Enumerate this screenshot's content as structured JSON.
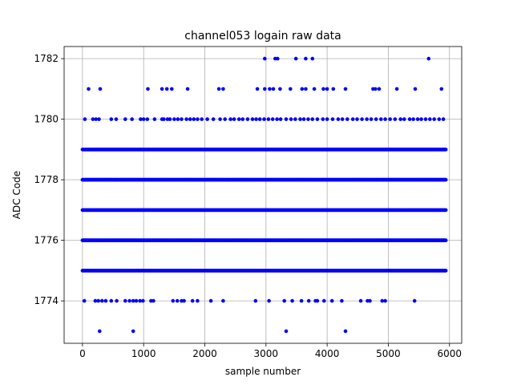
{
  "chart_data": {
    "type": "scatter",
    "title": "channel053 logain raw data",
    "xlabel": "sample number",
    "ylabel": "ADC Code",
    "xlim": [
      -300,
      6200
    ],
    "ylim": [
      1772.6,
      1782.4
    ],
    "xticks": [
      0,
      1000,
      2000,
      3000,
      4000,
      5000,
      6000
    ],
    "yticks": [
      1774,
      1776,
      1778,
      1780,
      1782
    ],
    "grid": true,
    "marker_color": "#0000ff",
    "n_samples": 5950,
    "series": [
      {
        "levels": [
          {
            "y": 1782,
            "x": [
              2980,
              3150,
              3190,
              3490,
              3650,
              3760,
              5660
            ]
          },
          {
            "y": 1781,
            "x": [
              100,
              290,
              1070,
              1300,
              1380,
              1460,
              1720,
              2230,
              2300,
              2860,
              2980,
              3060,
              3120,
              3230,
              3400,
              3590,
              3650,
              3790,
              3940,
              4000,
              4100,
              4300,
              4750,
              4790,
              4850,
              5140,
              5440,
              5870
            ]
          },
          {
            "y": 1780,
            "x": [
              40,
              170,
              220,
              270,
              470,
              550,
              700,
              810,
              950,
              1000,
              1060,
              1180,
              1300,
              1330,
              1390,
              1430,
              1500,
              1560,
              1620,
              1700,
              1760,
              1820,
              1880,
              1950,
              2040,
              2140,
              2250,
              2330,
              2420,
              2480,
              2560,
              2620,
              2700,
              2780,
              2840,
              2900,
              2970,
              3040,
              3110,
              3180,
              3240,
              3330,
              3410,
              3480,
              3560,
              3620,
              3690,
              3760,
              3840,
              3930,
              4000,
              4090,
              4180,
              4250,
              4330,
              4420,
              4490,
              4570,
              4650,
              4720,
              4800,
              4880,
              4950,
              5030,
              5110,
              5200,
              5260,
              5350,
              5410,
              5480,
              5540,
              5610,
              5680,
              5750,
              5830,
              5900
            ]
          },
          {
            "y": 1779,
            "x_range": [
              0,
              5950
            ],
            "dense": true
          },
          {
            "y": 1778,
            "x_range": [
              0,
              5950
            ],
            "dense": true
          },
          {
            "y": 1777,
            "x_range": [
              0,
              5950
            ],
            "dense": true
          },
          {
            "y": 1776,
            "x_range": [
              0,
              5950
            ],
            "dense": true
          },
          {
            "y": 1775,
            "x_range": [
              0,
              5950
            ],
            "dense": true
          },
          {
            "y": 1774,
            "x": [
              30,
              210,
              260,
              320,
              380,
              470,
              560,
              700,
              770,
              830,
              880,
              940,
              990,
              1120,
              1160,
              1480,
              1550,
              1620,
              1660,
              1800,
              1880,
              2100,
              2300,
              2830,
              3050,
              3300,
              3430,
              3580,
              3700,
              3810,
              3840,
              3950,
              4080,
              4240,
              4550,
              4660,
              4700,
              4900,
              4950,
              5430
            ]
          },
          {
            "y": 1773,
            "x": [
              280,
              830,
              3330,
              4300
            ]
          }
        ]
      }
    ]
  }
}
